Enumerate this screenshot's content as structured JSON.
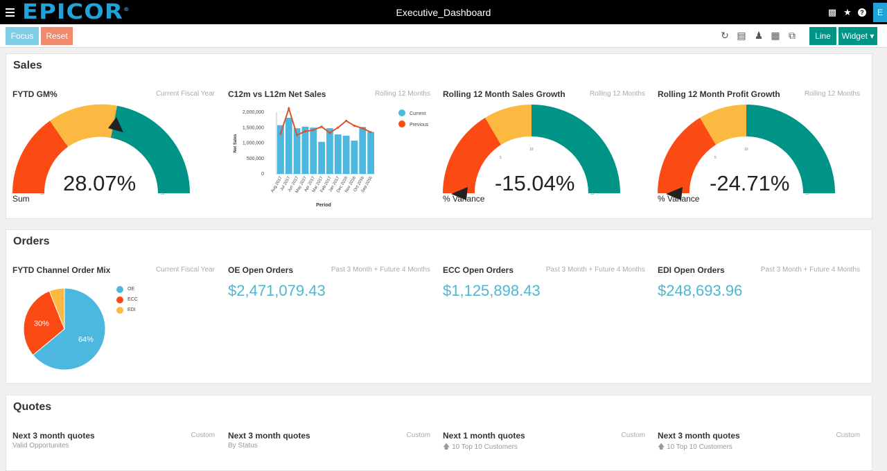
{
  "app": {
    "logo": "EPICOR",
    "title": "Executive_Dashboard",
    "avatar": "E"
  },
  "colors": {
    "teal": "#009486",
    "orange": "#fcb941",
    "red": "#fc4a14",
    "blue": "#4cb8df",
    "lineRed": "#d9532c"
  },
  "toolbar": {
    "focus": "Focus",
    "reset": "Reset",
    "line": "Line",
    "widget": "Widget ▾"
  },
  "sales": {
    "title": "Sales",
    "gm": {
      "title": "FYTD GM%",
      "sub": "Current Fiscal Year",
      "value": "28.07%",
      "label": "Sum",
      "needle_value": 28.07,
      "ticks": [
        "15",
        "28",
        "35",
        "50"
      ]
    },
    "net": {
      "title": "C12m vs L12m Net Sales",
      "sub": "Rolling 12 Months"
    },
    "growth": {
      "title": "Rolling 12 Month Sales Growth",
      "sub": "Rolling 12 Months",
      "value": "-15.04%",
      "label": "% Variance",
      "ticks": [
        "0",
        "5",
        "10",
        "15"
      ]
    },
    "profit": {
      "title": "Rolling 12 Month Profit Growth",
      "sub": "Rolling 12 Months",
      "value": "-24.71%",
      "label": "% Variance",
      "ticks": [
        "0",
        "5",
        "10",
        "15"
      ]
    }
  },
  "orders": {
    "title": "Orders",
    "mix": {
      "title": "FYTD Channel Order Mix",
      "sub": "Current Fiscal Year"
    },
    "oe": {
      "title": "OE Open Orders",
      "sub": "Past 3 Month + Future 4 Months",
      "value": "$2,471,079.43"
    },
    "ecc": {
      "title": "ECC Open Orders",
      "sub": "Past 3 Month + Future 4 Months",
      "value": "$1,125,898.43"
    },
    "edi": {
      "title": "EDI Open Orders",
      "sub": "Past 3 Month + Future 4 Months",
      "value": "$248,693.96"
    }
  },
  "quotes": {
    "title": "Quotes",
    "q1": {
      "title": "Next 3 month quotes",
      "sub": "Custom",
      "note": "Valid Opportunites"
    },
    "q2": {
      "title": "Next 3 month quotes",
      "sub": "Custom",
      "note": "By Status"
    },
    "q3": {
      "title": "Next 1 month quotes",
      "sub": "Custom",
      "note": "10   Top 10 Customers"
    },
    "q4": {
      "title": "Next 3 month quotes",
      "sub": "Custom",
      "note": "10   Top 10 Customers"
    }
  },
  "chart_data": [
    {
      "type": "bar",
      "categories": [
        "Aug 2017",
        "Jul 2017",
        "Jun 2017",
        "May 2017",
        "Apr 2017",
        "Mar 2017",
        "Feb 2017",
        "Jan 2017",
        "Dec 2016",
        "Nov 2016",
        "Oct 2016",
        "Sep 2016"
      ],
      "series": [
        {
          "name": "Current",
          "type": "bar",
          "values": [
            1580000,
            1820000,
            1480000,
            1530000,
            1500000,
            1040000,
            1480000,
            1280000,
            1240000,
            1080000,
            1520000,
            1360000
          ]
        },
        {
          "name": "Previous",
          "type": "line",
          "values": [
            1300000,
            2120000,
            1260000,
            1380000,
            1420000,
            1530000,
            1330000,
            1500000,
            1720000,
            1560000,
            1480000,
            1350000
          ]
        }
      ],
      "title": "C12m vs L12m Net Sales",
      "xlabel": "Period",
      "ylabel": "Net Sales",
      "yticks": [
        "0",
        "500,000",
        "1,000,000",
        "1,500,000",
        "2,000,000"
      ],
      "ylim": [
        0,
        2000000
      ],
      "legend": "right"
    },
    {
      "type": "pie",
      "labels": [
        "OE",
        "ECC",
        "EDI"
      ],
      "values": [
        64,
        30,
        6
      ],
      "value_labels": [
        "64%",
        "30%",
        ""
      ],
      "legend": "right"
    }
  ]
}
